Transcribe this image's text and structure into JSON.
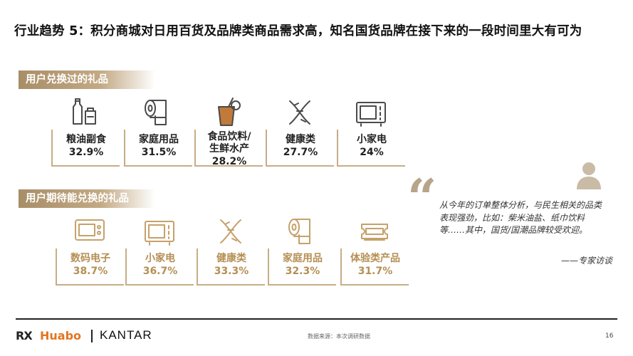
{
  "title": "行业趋势 5：积分商城对日用百货及品牌类商品需求高，知名国货品牌在接下来的一段时间里大有可为",
  "redeemed": {
    "label": "用户兑换过的礼品",
    "items": [
      {
        "name": "粮油副食",
        "value": "32.9%",
        "icon": "bottles-icon"
      },
      {
        "name": "家庭用品",
        "value": "31.5%",
        "icon": "paper-roll-icon"
      },
      {
        "name": "食品饮料/\n生鲜水产",
        "value": "28.2%",
        "icon": "drink-icon"
      },
      {
        "name": "健康类",
        "value": "27.7%",
        "icon": "dna-icon"
      },
      {
        "name": "小家电",
        "value": "24%",
        "icon": "microwave-icon"
      }
    ]
  },
  "expected": {
    "label": "用户期待能兑换的礼品",
    "items": [
      {
        "name": "数码电子",
        "value": "38.7%",
        "icon": "device-icon"
      },
      {
        "name": "小家电",
        "value": "36.7%",
        "icon": "microwave-icon"
      },
      {
        "name": "健康类",
        "value": "33.3%",
        "icon": "dna-icon"
      },
      {
        "name": "家庭用品",
        "value": "32.3%",
        "icon": "paper-roll-icon"
      },
      {
        "name": "体验类产品",
        "value": "31.7%",
        "icon": "ticket-icon"
      }
    ]
  },
  "quote": {
    "text": "从今年的订单整体分析，与民生相关的品类表现强劲，比如：柴米油盐、纸巾饮料等……其中，国货/国潮品牌较受欢迎。",
    "source": "——专家访谈"
  },
  "footer": {
    "logo_rx": "RX",
    "logo_huabo": "Huabo",
    "logo_kantar": "KANTAR",
    "source": "数据来源：本次调研数据",
    "page": "16"
  },
  "colors": {
    "gold": "#c6ad86",
    "gold_text": "#b58f54",
    "huabo_orange": "#e3751f"
  }
}
